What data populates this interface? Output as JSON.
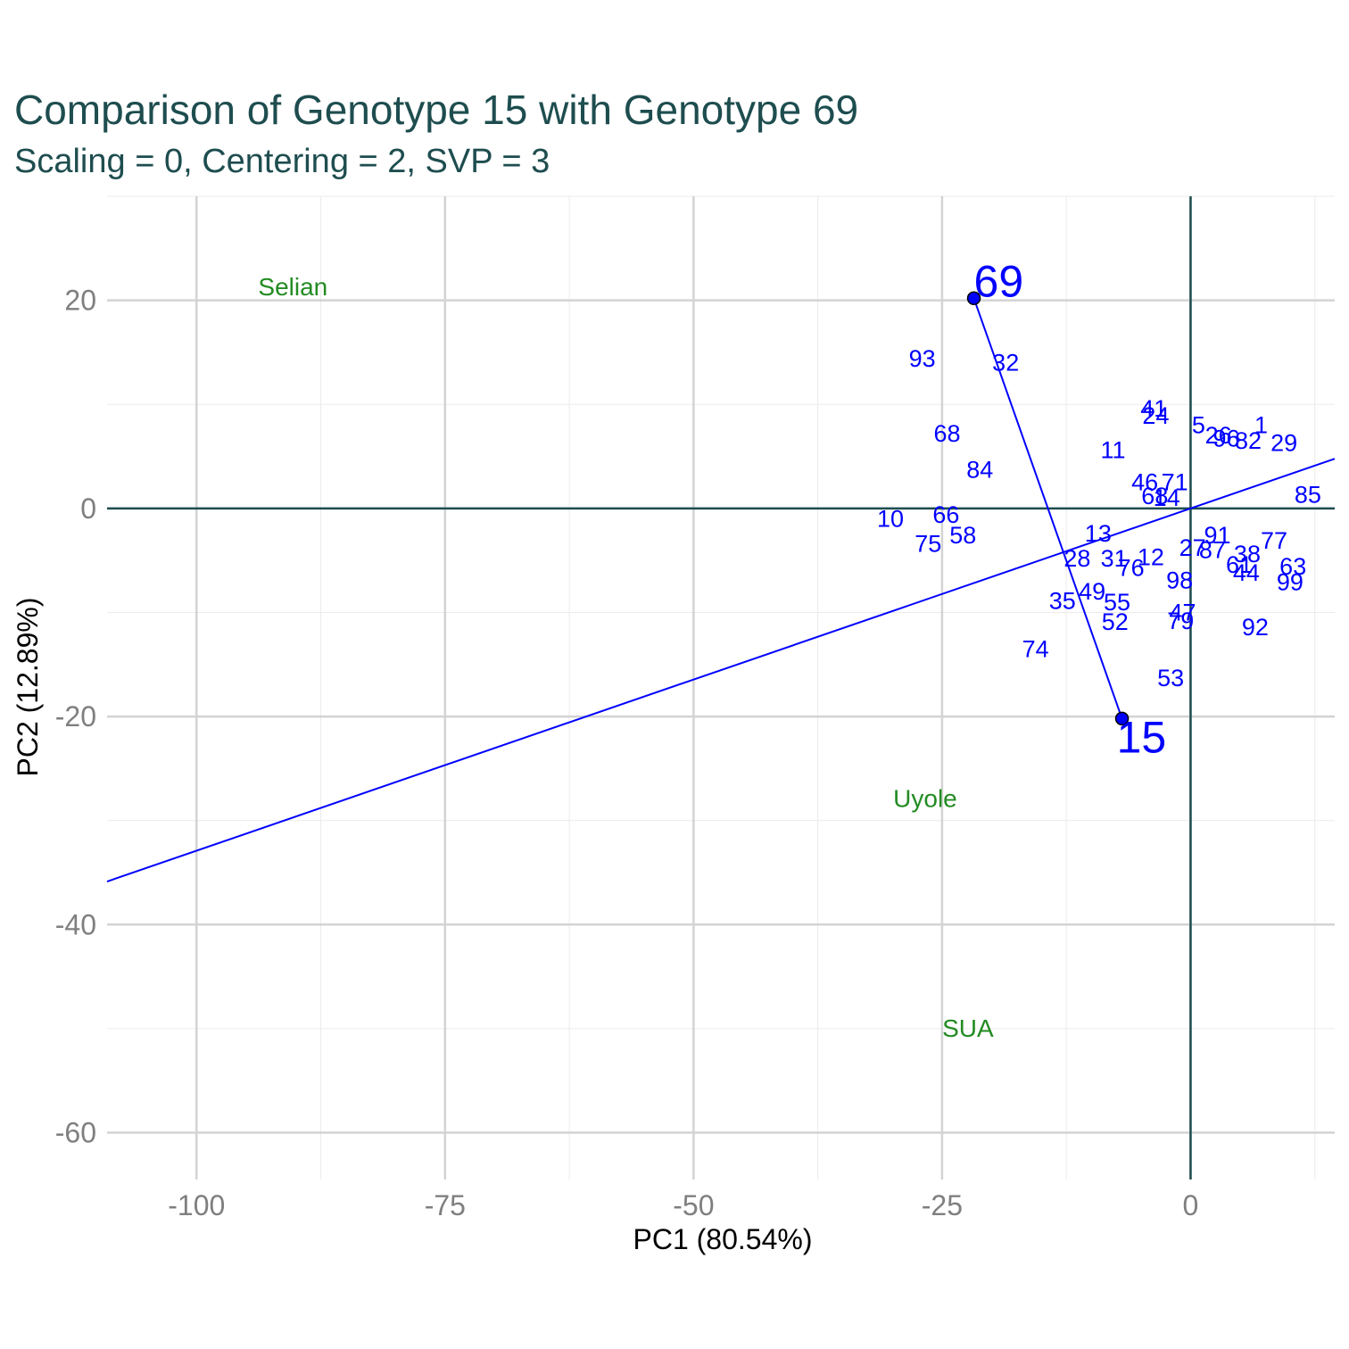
{
  "title": "Comparison of Genotype 15 with Genotype 69",
  "subtitle": "Scaling = 0, Centering = 2, SVP = 3",
  "chart_data": {
    "type": "scatter",
    "title": "Comparison of Genotype 15 with Genotype 69",
    "subtitle": "Scaling = 0, Centering = 2, SVP = 3",
    "xlabel": "PC1 (80.54%)",
    "ylabel": "PC2 (12.89%)",
    "xlim": [
      -109,
      14.5
    ],
    "ylim": [
      -64.5,
      30
    ],
    "x_ticks": [
      -100,
      -75,
      -50,
      -25,
      0
    ],
    "y_ticks": [
      -60,
      -40,
      -20,
      0,
      20
    ],
    "grid": true,
    "colors": {
      "genotype": "#0000ff",
      "environment": "#228b22",
      "reference_axes": "#1e4d4f",
      "grid": "#d3d3d3",
      "title": "#1e4d4f"
    },
    "compared_genotypes": [
      {
        "label": "69",
        "x": -21.8,
        "y": 20.2
      },
      {
        "label": "15",
        "x": -6.9,
        "y": -20.2
      }
    ],
    "comparison_line": {
      "slope": 0.329,
      "intercept": 0
    },
    "environments": [
      {
        "label": "Selian",
        "x": -90.3,
        "y": 20.5
      },
      {
        "label": "Uyole",
        "x": -26.7,
        "y": -28.7
      },
      {
        "label": "SUA",
        "x": -22.4,
        "y": -50.8
      }
    ],
    "genotypes": [
      {
        "label": "93",
        "x": -27.0,
        "y": 14.4
      },
      {
        "label": "32",
        "x": -18.6,
        "y": 14.0
      },
      {
        "label": "41",
        "x": -3.7,
        "y": 9.6
      },
      {
        "label": "24",
        "x": -3.5,
        "y": 8.9
      },
      {
        "label": "68",
        "x": -24.5,
        "y": 7.2
      },
      {
        "label": "84",
        "x": -21.2,
        "y": 3.7
      },
      {
        "label": "11",
        "x": -7.8,
        "y": 5.6
      },
      {
        "label": "10",
        "x": -30.2,
        "y": -1.0
      },
      {
        "label": "66",
        "x": -24.6,
        "y": -0.6
      },
      {
        "label": "75",
        "x": -26.4,
        "y": -3.4
      },
      {
        "label": "58",
        "x": -22.9,
        "y": -2.6
      },
      {
        "label": "13",
        "x": -9.3,
        "y": -2.4
      },
      {
        "label": "31",
        "x": -7.7,
        "y": -4.8
      },
      {
        "label": "28",
        "x": -11.4,
        "y": -4.8
      },
      {
        "label": "76",
        "x": -6.0,
        "y": -5.7
      },
      {
        "label": "12",
        "x": -4.0,
        "y": -4.7
      },
      {
        "label": "49",
        "x": -9.9,
        "y": -8.0
      },
      {
        "label": "35",
        "x": -12.9,
        "y": -8.9
      },
      {
        "label": "55",
        "x": -7.4,
        "y": -9.0
      },
      {
        "label": "52",
        "x": -7.6,
        "y": -10.9
      },
      {
        "label": "74",
        "x": -15.6,
        "y": -13.5
      },
      {
        "label": "53",
        "x": -2.0,
        "y": -16.3
      },
      {
        "label": "98",
        "x": -1.1,
        "y": -6.9
      },
      {
        "label": "47",
        "x": -0.8,
        "y": -10.0
      },
      {
        "label": "79",
        "x": -1.0,
        "y": -10.8
      },
      {
        "label": "92",
        "x": 6.5,
        "y": -11.4
      },
      {
        "label": "63",
        "x": 10.3,
        "y": -5.6
      },
      {
        "label": "99",
        "x": 10.0,
        "y": -7.1
      },
      {
        "label": "44",
        "x": 5.6,
        "y": -6.2
      },
      {
        "label": "61",
        "x": 4.9,
        "y": -5.4
      },
      {
        "label": "38",
        "x": 5.7,
        "y": -4.4
      },
      {
        "label": "87",
        "x": 2.2,
        "y": -4.0
      },
      {
        "label": "27",
        "x": 0.2,
        "y": -3.8
      },
      {
        "label": "91",
        "x": 2.7,
        "y": -2.6
      },
      {
        "label": "77",
        "x": 8.4,
        "y": -3.1
      },
      {
        "label": "46",
        "x": -4.6,
        "y": 2.5
      },
      {
        "label": "71",
        "x": -1.6,
        "y": 2.5
      },
      {
        "label": "68b",
        "x": -3.6,
        "y": 1.2
      },
      {
        "label": "14",
        "x": -2.4,
        "y": 1.0
      },
      {
        "label": "85",
        "x": 11.8,
        "y": 1.3
      },
      {
        "label": "29",
        "x": 9.4,
        "y": 6.3
      },
      {
        "label": "5",
        "x": 0.8,
        "y": 8.0
      },
      {
        "label": "26",
        "x": 2.8,
        "y": 7.0
      },
      {
        "label": "96",
        "x": 3.6,
        "y": 6.7
      },
      {
        "label": "82",
        "x": 5.8,
        "y": 6.5
      },
      {
        "label": "1",
        "x": 7.1,
        "y": 8.0
      }
    ]
  }
}
